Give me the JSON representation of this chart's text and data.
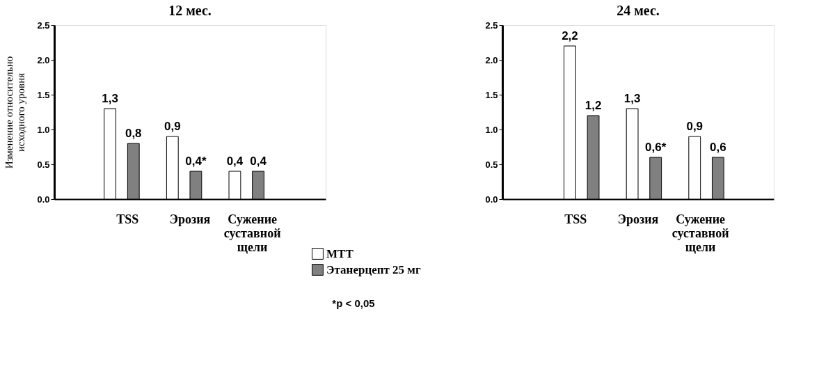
{
  "chart_data": [
    {
      "type": "bar",
      "title": "12 мес.",
      "ylabel": "Изменение относительно исходного уровня",
      "categories": [
        "TSS",
        "Эрозия",
        "Сужение суставной щели"
      ],
      "series": [
        {
          "name": "МТТ",
          "color": "#ffffff",
          "values": [
            1.3,
            0.9,
            0.4
          ],
          "value_labels": [
            "1,3",
            "0,9",
            "0,4"
          ]
        },
        {
          "name": "Этанерцепт 25 мг",
          "color": "#808080",
          "values": [
            0.8,
            0.4,
            0.4
          ],
          "value_labels": [
            "0,8",
            "0,4*",
            "0,4"
          ]
        }
      ],
      "ylim": [
        0,
        2.5
      ],
      "yticks": [
        {
          "value": 0,
          "label": "0.0"
        },
        0.5,
        {
          "value": 1,
          "label": "1.0"
        },
        1.5,
        {
          "value": 2,
          "label": "2.0"
        },
        2.5
      ],
      "grid": false,
      "legend": "bottom",
      "annotations": [
        "*p < 0,05"
      ]
    },
    {
      "type": "bar",
      "title": "24 мес.",
      "categories": [
        "TSS",
        "Эрозия",
        "Сужение суставной щели"
      ],
      "series": [
        {
          "color": "#ffffff",
          "values": [
            2.2,
            1.3,
            0.9
          ],
          "value_labels": [
            "2,2",
            "1,3",
            "0,9"
          ]
        },
        {
          "color": "#808080",
          "values": [
            1.2,
            0.6,
            0.6
          ],
          "value_labels": [
            "1,2",
            "0,6*",
            "0,6"
          ]
        }
      ],
      "ylim": [
        0,
        2.5
      ],
      "yticks": [
        {
          "value": 0,
          "label": "0.0"
        },
        0.5,
        {
          "value": 1,
          "label": "1.0"
        },
        1.5,
        {
          "value": 2,
          "label": "2.0"
        },
        2.5
      ],
      "grid": false
    }
  ]
}
